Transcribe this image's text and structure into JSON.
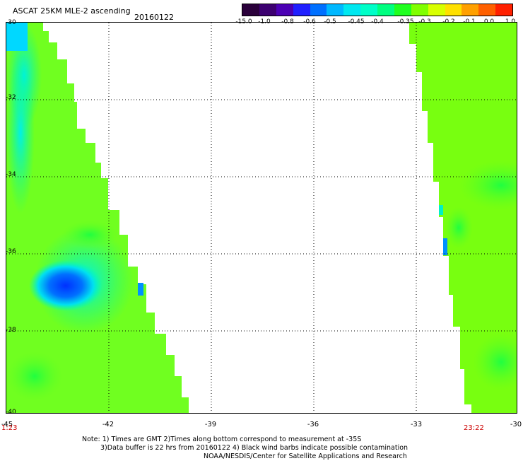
{
  "header": {
    "title": "ASCAT 25KM MLE-2 ascending",
    "date": "20160122"
  },
  "colorbar": {
    "colors": [
      "#2a003a",
      "#3c0070",
      "#4b00b4",
      "#2020ff",
      "#0070ff",
      "#00b8ff",
      "#00e8f0",
      "#00ffc8",
      "#00ff80",
      "#20ff20",
      "#80ff00",
      "#d8ff00",
      "#ffe000",
      "#ffa000",
      "#ff6000",
      "#ff2000"
    ],
    "labels": [
      "-15.0",
      "-1.0",
      "-0.8",
      "-0.6",
      "-0.5",
      "-0.45",
      "-0.4",
      "-0.35",
      "-0.3",
      "-0.2",
      "-0.1",
      "0.0",
      "1.0"
    ]
  },
  "axes": {
    "y_labels": [
      "-30",
      "-32",
      "-34",
      "-36",
      "-38",
      "-40"
    ],
    "x_labels": [
      "-45",
      "-42",
      "-39",
      "-36",
      "-33",
      "-30"
    ]
  },
  "times": {
    "left": "1:23",
    "right": "23:22"
  },
  "notes": [
    "Note: 1) Times are GMT 2)Times along bottom correspond to measurement at -35S",
    "3)Data buffer is 22 hrs from 20160122 4) Black wind barbs indicate possible contamination",
    "NOAA/NESDIS/Center for Satellite Applications and Research"
  ]
}
